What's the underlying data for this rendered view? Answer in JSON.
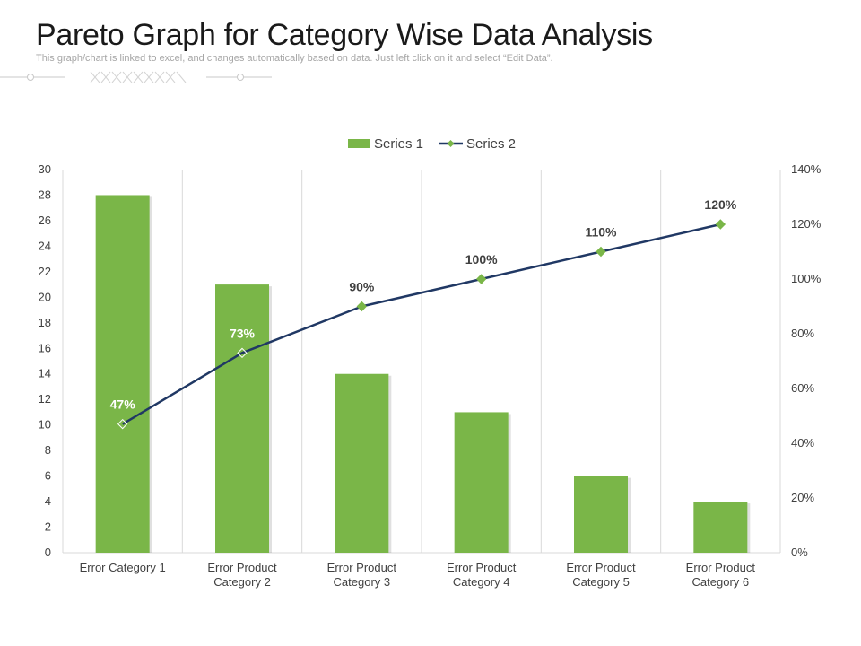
{
  "header": {
    "title": "Pareto Graph for Category Wise Data Analysis",
    "subtitle": "This graph/chart is linked to excel, and changes automatically based on data. Just left click on it and select “Edit Data”."
  },
  "colors": {
    "bar": "#7ab648",
    "line": "#203864",
    "marker": "#7ab648",
    "grid": "#d9d9d9",
    "axis_text": "#404040"
  },
  "chart_data": {
    "type": "bar",
    "categories": [
      [
        "Error Category 1"
      ],
      [
        "Error Product",
        "Category 2"
      ],
      [
        "Error Product",
        "Category 3"
      ],
      [
        "Error Product",
        "Category 4"
      ],
      [
        "Error Product",
        "Category 5"
      ],
      [
        "Error Product",
        "Category 6"
      ]
    ],
    "series": [
      {
        "name": "Series 1",
        "type": "bar",
        "axis": "left",
        "values": [
          28,
          21,
          14,
          11,
          6,
          4
        ]
      },
      {
        "name": "Series 2",
        "type": "line",
        "axis": "right",
        "values": [
          47,
          73,
          90,
          100,
          110,
          120
        ],
        "data_labels": [
          "47%",
          "73%",
          "90%",
          "100%",
          "110%",
          "120%"
        ]
      }
    ],
    "left_axis": {
      "ylim": [
        0,
        30
      ],
      "ticks": [
        0,
        2,
        4,
        6,
        8,
        10,
        12,
        14,
        16,
        18,
        20,
        22,
        24,
        26,
        28,
        30
      ]
    },
    "right_axis": {
      "ylim": [
        0,
        140
      ],
      "ticks": [
        0,
        20,
        40,
        60,
        80,
        100,
        120,
        140
      ],
      "tick_labels": [
        "0%",
        "20%",
        "40%",
        "60%",
        "80%",
        "100%",
        "120%",
        "140%"
      ]
    },
    "legend": {
      "position": "top-center",
      "entries": [
        "Series 1",
        "Series 2"
      ]
    },
    "grid": "vertical"
  }
}
